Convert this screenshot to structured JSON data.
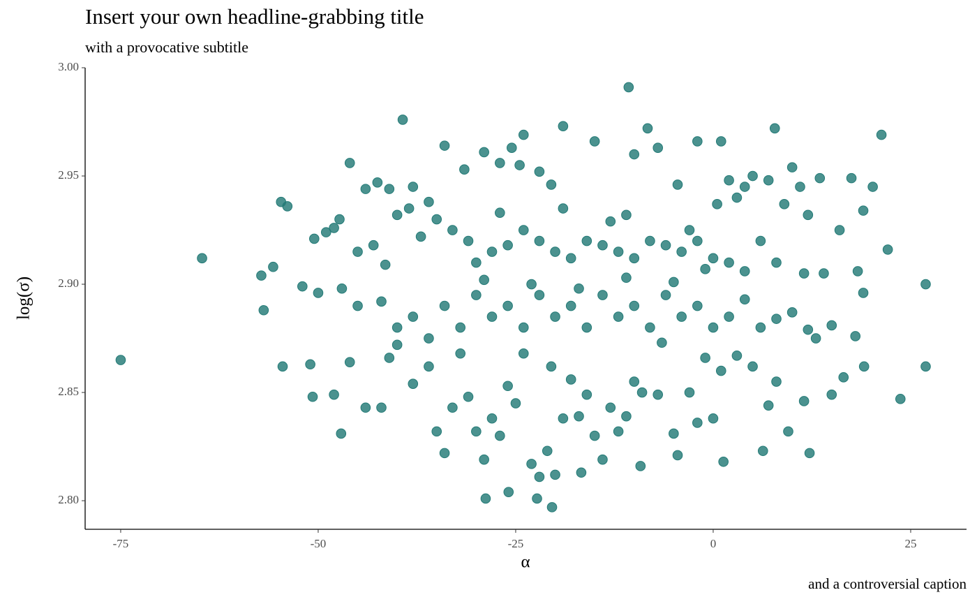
{
  "chart_data": {
    "type": "scatter",
    "title": "Insert your own headline-grabbing title",
    "subtitle": "with a provocative subtitle",
    "caption": "and a controversial caption",
    "x_label": "α",
    "y_label": "log(σ)",
    "color": "#237a76",
    "xlim": [
      -79.5,
      32.07
    ],
    "ylim": [
      2.7868,
      3.0
    ],
    "xticks": [
      -75,
      -50,
      -25,
      0,
      25
    ],
    "yticks": [
      {
        "value": 2.8,
        "label": "2.80"
      },
      2.85,
      {
        "value": 2.9,
        "label": "2.90"
      },
      2.95,
      {
        "value": 3.0,
        "label": "3.00"
      }
    ],
    "x": [
      -75.0,
      -64.7,
      -54.7,
      -53.9,
      -57.2,
      -56.9,
      -54.5,
      -55.7,
      -39.3,
      -10.7,
      -19.0,
      -8.3,
      7.8,
      21.3,
      26.9,
      26.9,
      23.7,
      -20.4,
      -28.8,
      -25.9,
      -22.3,
      -47.1,
      12.2,
      6.3,
      1.3,
      -9.2,
      -16.7,
      9.5,
      22.1,
      20.2,
      18.3,
      19.1,
      -47.3,
      -46,
      -44,
      -42.5,
      -41,
      -38,
      -36,
      -34,
      -31.5,
      -29,
      -27,
      -25.5,
      -24.5,
      -24,
      -22,
      -20.5,
      -15,
      -10,
      -7,
      -2,
      1,
      -4.5,
      2,
      4,
      5,
      7,
      10,
      11,
      13.5,
      17.5,
      -52,
      -50.5,
      -49,
      -48,
      -45,
      -43,
      -41.5,
      -40,
      -38.5,
      -37,
      -35,
      -33,
      -31,
      -30,
      -28,
      -26,
      -24,
      -22,
      -20,
      -18,
      -16,
      -14,
      -12,
      -10,
      -8,
      -6,
      -4,
      -2,
      0,
      2,
      4,
      6,
      8,
      11.5,
      14,
      16,
      19,
      12,
      9,
      -27,
      -19,
      -13,
      -11,
      -3,
      0.5,
      3,
      -50,
      -47,
      -45,
      -42,
      -40,
      -38,
      -36,
      -34,
      -32,
      -30,
      -28,
      -26,
      -24,
      -22,
      -20,
      -18,
      -16,
      -14,
      -12,
      -10,
      -8,
      -6,
      -4,
      -2,
      0,
      2,
      4,
      6,
      8,
      10,
      12,
      15,
      18,
      19,
      -29,
      -23,
      -17,
      -11,
      -5,
      -1,
      -51,
      -50.7,
      -48,
      -46,
      -44,
      -42,
      -41,
      -38,
      -36,
      -35,
      -34,
      -33,
      -31,
      -30,
      -29,
      -28,
      -27,
      -26,
      -25,
      -23,
      -22,
      -21,
      -20,
      -19,
      -17,
      -16,
      -15,
      -14,
      -13,
      -12,
      -11,
      -9,
      -7,
      -5,
      -4.5,
      -3,
      -2,
      0,
      1,
      3,
      5,
      7,
      8,
      11.5,
      13,
      15,
      16.5,
      -20.5,
      -18,
      -24,
      -10,
      -6.5,
      -1,
      -32,
      -40
    ],
    "y": [
      2.865,
      2.912,
      2.938,
      2.936,
      2.904,
      2.888,
      2.862,
      2.908,
      2.976,
      2.991,
      2.973,
      2.972,
      2.972,
      2.969,
      2.9,
      2.862,
      2.847,
      2.797,
      2.801,
      2.804,
      2.801,
      2.831,
      2.822,
      2.823,
      2.818,
      2.816,
      2.813,
      2.832,
      2.916,
      2.945,
      2.906,
      2.862,
      2.93,
      2.956,
      2.944,
      2.947,
      2.944,
      2.945,
      2.938,
      2.964,
      2.953,
      2.961,
      2.956,
      2.963,
      2.955,
      2.969,
      2.952,
      2.946,
      2.966,
      2.96,
      2.963,
      2.966,
      2.966,
      2.946,
      2.948,
      2.945,
      2.95,
      2.948,
      2.954,
      2.945,
      2.949,
      2.949,
      2.899,
      2.921,
      2.924,
      2.926,
      2.915,
      2.918,
      2.909,
      2.932,
      2.935,
      2.922,
      2.93,
      2.925,
      2.92,
      2.91,
      2.915,
      2.918,
      2.925,
      2.92,
      2.915,
      2.912,
      2.92,
      2.918,
      2.915,
      2.912,
      2.92,
      2.918,
      2.915,
      2.92,
      2.912,
      2.91,
      2.906,
      2.92,
      2.91,
      2.905,
      2.905,
      2.925,
      2.934,
      2.932,
      2.937,
      2.933,
      2.935,
      2.929,
      2.932,
      2.925,
      2.937,
      2.94,
      2.896,
      2.898,
      2.89,
      2.892,
      2.88,
      2.885,
      2.875,
      2.89,
      2.88,
      2.895,
      2.885,
      2.89,
      2.88,
      2.895,
      2.885,
      2.89,
      2.88,
      2.895,
      2.885,
      2.89,
      2.88,
      2.895,
      2.885,
      2.89,
      2.88,
      2.885,
      2.893,
      2.88,
      2.884,
      2.887,
      2.879,
      2.881,
      2.876,
      2.896,
      2.902,
      2.9,
      2.898,
      2.903,
      2.901,
      2.907,
      2.863,
      2.848,
      2.849,
      2.864,
      2.843,
      2.843,
      2.866,
      2.854,
      2.862,
      2.832,
      2.822,
      2.843,
      2.848,
      2.832,
      2.819,
      2.838,
      2.83,
      2.853,
      2.845,
      2.817,
      2.811,
      2.823,
      2.812,
      2.838,
      2.839,
      2.849,
      2.83,
      2.819,
      2.843,
      2.832,
      2.839,
      2.85,
      2.849,
      2.831,
      2.821,
      2.85,
      2.836,
      2.838,
      2.86,
      2.867,
      2.862,
      2.844,
      2.855,
      2.846,
      2.875,
      2.849,
      2.857,
      2.862,
      2.856,
      2.868,
      2.855,
      2.873,
      2.866,
      2.868,
      2.872
    ]
  }
}
